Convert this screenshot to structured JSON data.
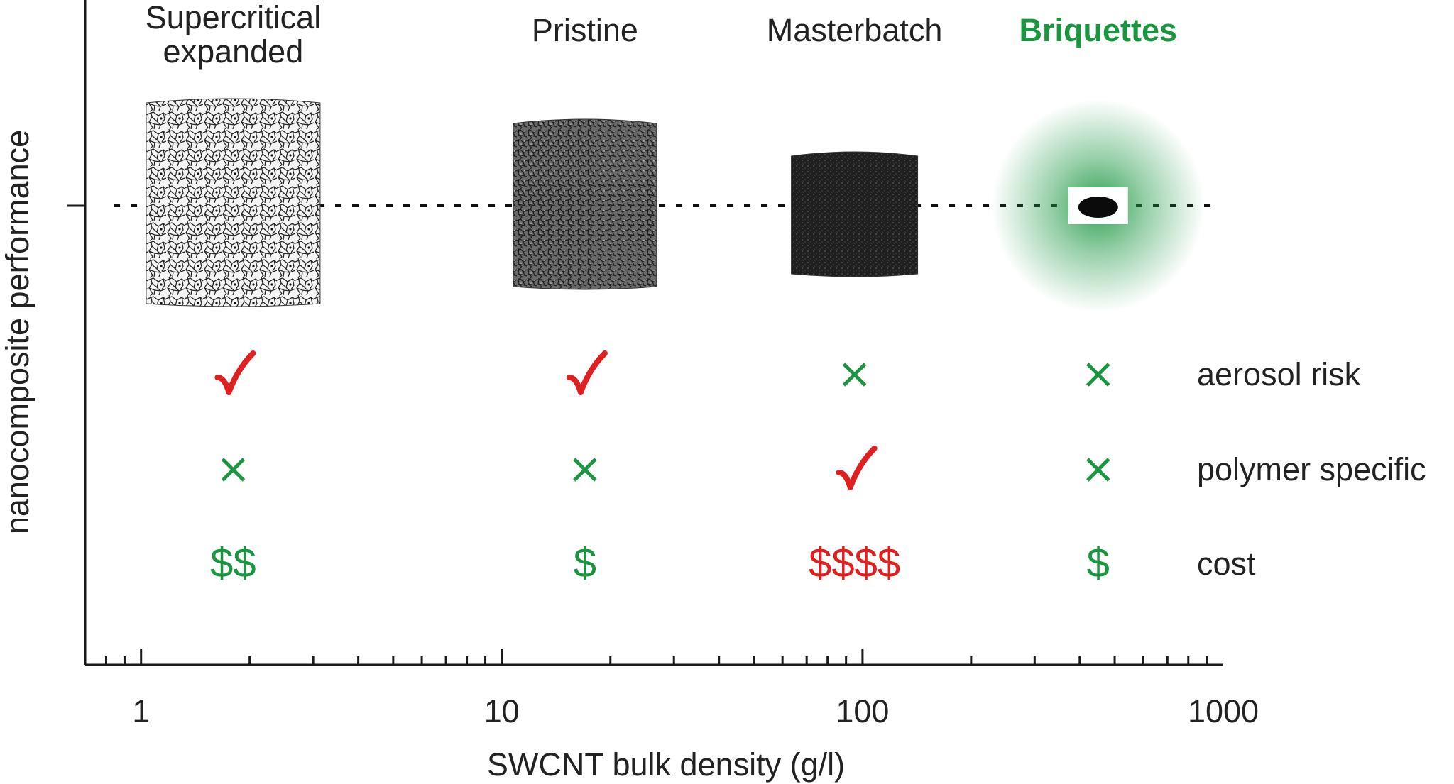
{
  "colors": {
    "axis": "#1a1a1a",
    "text": "#222222",
    "good": "#1a9641",
    "bad": "#e02020",
    "highlight": "#1a9641"
  },
  "chart_data": {
    "type": "scatter",
    "xlabel": "SWCNT bulk density (g/l)",
    "ylabel": "nanocomposite performance",
    "x_scale": "log",
    "xlim": [
      0.7,
      1000
    ],
    "x_ticks": [
      {
        "value": 1,
        "label": "1"
      },
      {
        "value": 10,
        "label": "10"
      },
      {
        "value": 100,
        "label": "100"
      },
      {
        "value": 1000,
        "label": "1000"
      }
    ],
    "performance_line": "dashed",
    "materials": [
      {
        "name": "Supercritical expanded",
        "lines": [
          "Supercritical",
          "expanded"
        ],
        "density": 1.8,
        "highlight": false,
        "texture": "foam",
        "aerosol_risk": "check",
        "polymer_specific": "cross",
        "cost": "$$",
        "cost_status": "good"
      },
      {
        "name": "Pristine",
        "lines": [
          "Pristine"
        ],
        "density": 17,
        "highlight": false,
        "texture": "grey",
        "aerosol_risk": "check",
        "polymer_specific": "cross",
        "cost": "$",
        "cost_status": "good"
      },
      {
        "name": "Masterbatch",
        "lines": [
          "Masterbatch"
        ],
        "density": 95,
        "highlight": false,
        "texture": "dark",
        "aerosol_risk": "cross",
        "polymer_specific": "check",
        "cost": "$$$$",
        "cost_status": "bad"
      },
      {
        "name": "Briquettes",
        "lines": [
          "Briquettes"
        ],
        "density": 450,
        "highlight": true,
        "texture": "briquette",
        "aerosol_risk": "cross",
        "polymer_specific": "cross",
        "cost": "$",
        "cost_status": "good"
      }
    ],
    "criteria": [
      "aerosol risk",
      "polymer specific",
      "cost"
    ]
  }
}
